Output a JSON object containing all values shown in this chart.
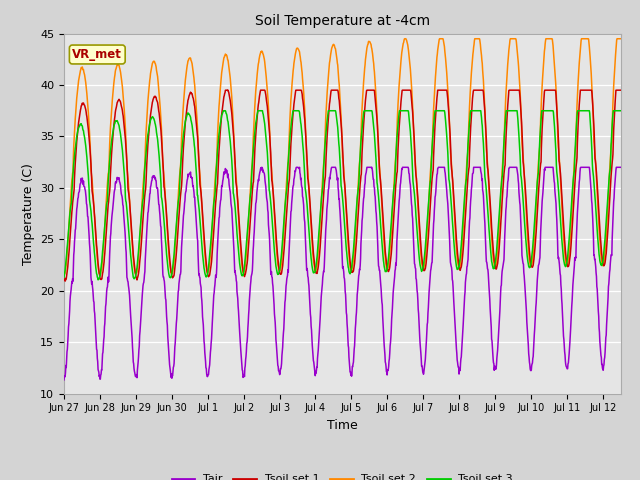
{
  "title": "Soil Temperature at -4cm",
  "xlabel": "Time",
  "ylabel": "Temperature (C)",
  "ylim": [
    10,
    45
  ],
  "background_color": "#e5e5e5",
  "fig_facecolor": "#d4d4d4",
  "grid_color": "white",
  "colors": {
    "Tair": "#9900cc",
    "Tsoil set 1": "#cc0000",
    "Tsoil set 2": "#ff8800",
    "Tsoil set 3": "#00cc00"
  },
  "legend_entries": [
    "Tair",
    "Tsoil set 1",
    "Tsoil set 2",
    "Tsoil set 3"
  ],
  "annotation_text": "VR_met",
  "annotation_color": "#aa0000",
  "annotation_bg": "#ffffcc",
  "annotation_border": "#999900",
  "tick_labels": [
    "Jun 27",
    "Jun 28",
    "Jun 29",
    "Jun 30",
    "Jul 1",
    "Jul 2",
    "Jul 3",
    "Jul 4",
    "Jul 5",
    "Jul 6",
    "Jul 7",
    "Jul 8",
    "Jul 9",
    "Jul 10",
    "Jul 11",
    "Jul 12"
  ],
  "n_days": 15.5,
  "points_per_day": 96
}
